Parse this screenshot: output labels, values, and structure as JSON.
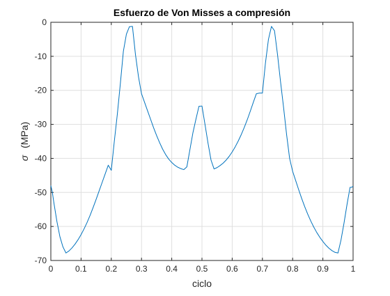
{
  "chart_data": {
    "type": "line",
    "title": "Esfuerzo de Von Misses a compresión",
    "xlabel": "ciclo",
    "ylabel_symbol": "σ",
    "ylabel": "(MPa)",
    "xlim": [
      0,
      1
    ],
    "ylim": [
      -70,
      0
    ],
    "xticks": [
      0,
      0.1,
      0.2,
      0.3,
      0.4,
      0.5,
      0.6,
      0.7,
      0.8,
      0.9,
      1
    ],
    "xtick_labels": [
      "0",
      "0.1",
      "0.2",
      "0.3",
      "0.4",
      "0.5",
      "0.6",
      "0.7",
      "0.8",
      "0.9",
      "1"
    ],
    "yticks": [
      0,
      -10,
      -20,
      -30,
      -40,
      -50,
      -60,
      -70
    ],
    "ytick_labels": [
      "0",
      "-10",
      "-20",
      "-30",
      "-40",
      "-50",
      "-60",
      "-70"
    ],
    "grid": true,
    "series": [
      {
        "color": "#0072BD",
        "x": [
          0,
          0.005,
          0.01,
          0.02,
          0.03,
          0.04,
          0.05,
          0.06,
          0.07,
          0.08,
          0.09,
          0.1,
          0.11,
          0.12,
          0.13,
          0.14,
          0.15,
          0.16,
          0.17,
          0.18,
          0.19,
          0.2,
          0.21,
          0.22,
          0.23,
          0.24,
          0.25,
          0.26,
          0.27,
          0.28,
          0.29,
          0.3,
          0.31,
          0.32,
          0.33,
          0.34,
          0.35,
          0.36,
          0.37,
          0.38,
          0.39,
          0.4,
          0.41,
          0.42,
          0.43,
          0.44,
          0.45,
          0.46,
          0.47,
          0.48,
          0.49,
          0.5,
          0.51,
          0.52,
          0.53,
          0.54,
          0.55,
          0.56,
          0.57,
          0.58,
          0.59,
          0.6,
          0.61,
          0.62,
          0.63,
          0.64,
          0.65,
          0.66,
          0.67,
          0.68,
          0.69,
          0.7,
          0.71,
          0.72,
          0.73,
          0.74,
          0.75,
          0.76,
          0.77,
          0.78,
          0.79,
          0.8,
          0.81,
          0.82,
          0.83,
          0.84,
          0.85,
          0.86,
          0.87,
          0.88,
          0.89,
          0.9,
          0.91,
          0.92,
          0.93,
          0.94,
          0.95,
          0.96,
          0.97,
          0.98,
          0.99,
          0.995,
          1
        ],
        "y": [
          -48,
          -50,
          -53,
          -58.5,
          -63,
          -66,
          -67.8,
          -67.2,
          -66.3,
          -65.2,
          -63.9,
          -62.4,
          -60.7,
          -58.8,
          -56.7,
          -54.4,
          -52,
          -49.5,
          -47,
          -44.5,
          -42,
          -43.5,
          -35,
          -27,
          -18,
          -8.5,
          -3.5,
          -1.3,
          -1.2,
          -9.5,
          -16,
          -21,
          -23.5,
          -26,
          -28.5,
          -31,
          -33.3,
          -35.4,
          -37.3,
          -38.9,
          -40.2,
          -41.2,
          -42,
          -42.6,
          -43,
          -43.3,
          -42.5,
          -37.5,
          -32.5,
          -28.5,
          -24.7,
          -24.6,
          -30,
          -35.5,
          -40.5,
          -43.1,
          -42.7,
          -42.1,
          -41.4,
          -40.5,
          -39.4,
          -38.1,
          -36.6,
          -34.9,
          -33,
          -30.9,
          -28.6,
          -26.1,
          -23.5,
          -21,
          -20.8,
          -20.8,
          -12,
          -5,
          -1.2,
          -2.5,
          -9.5,
          -17.5,
          -25,
          -33,
          -40,
          -43.8,
          -46.5,
          -49.2,
          -51.8,
          -54.2,
          -56.4,
          -58.4,
          -60.2,
          -61.8,
          -63.2,
          -64.4,
          -65.5,
          -66.4,
          -67.1,
          -67.6,
          -67.8,
          -64,
          -59,
          -53.5,
          -48.5,
          -48.5,
          -48.2
        ]
      }
    ]
  }
}
